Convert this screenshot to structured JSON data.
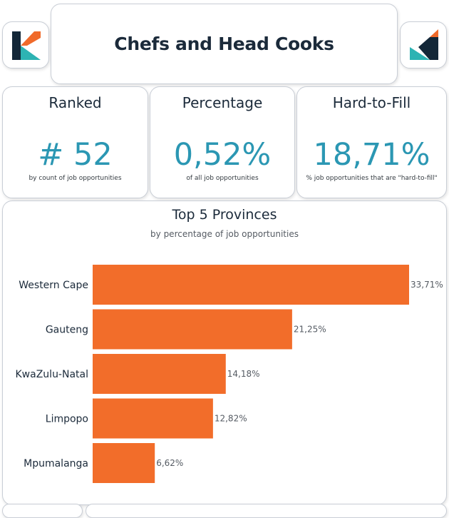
{
  "header": {
    "title": "Chefs and Head Cooks"
  },
  "logos": {
    "left_icon": "kerning-logo-icon",
    "right_icon": "kerning-logo-icon-flipped",
    "colors": {
      "teal": "#2db3b3",
      "navy": "#132738",
      "orange": "#f06a2a"
    }
  },
  "kpis": {
    "ranked": {
      "label": "Ranked",
      "value": "# 52",
      "sub": "by count of job opportunities"
    },
    "percentage": {
      "label": "Percentage",
      "value": "0,52%",
      "sub": "of all job opportunities"
    },
    "hard_to_fill": {
      "label": "Hard-to-Fill",
      "value": "18,71%",
      "sub": "% job opportunities that are \"hard-to-fill\""
    }
  },
  "chart_data": {
    "type": "bar",
    "orientation": "horizontal",
    "title": "Top 5 Provinces",
    "subtitle": "by percentage of job opportunities",
    "categories": [
      "Western Cape",
      "Gauteng",
      "KwaZulu-Natal",
      "Limpopo",
      "Mpumalanga"
    ],
    "values": [
      33.71,
      21.25,
      14.18,
      12.82,
      6.62
    ],
    "value_labels": [
      "33,71%",
      "21,25%",
      "14,18%",
      "12,82%",
      "6,62%"
    ],
    "xlim": [
      0,
      33.71
    ],
    "bar_color": "#f26d2a",
    "grid": false,
    "xlabel": "",
    "ylabel": ""
  }
}
